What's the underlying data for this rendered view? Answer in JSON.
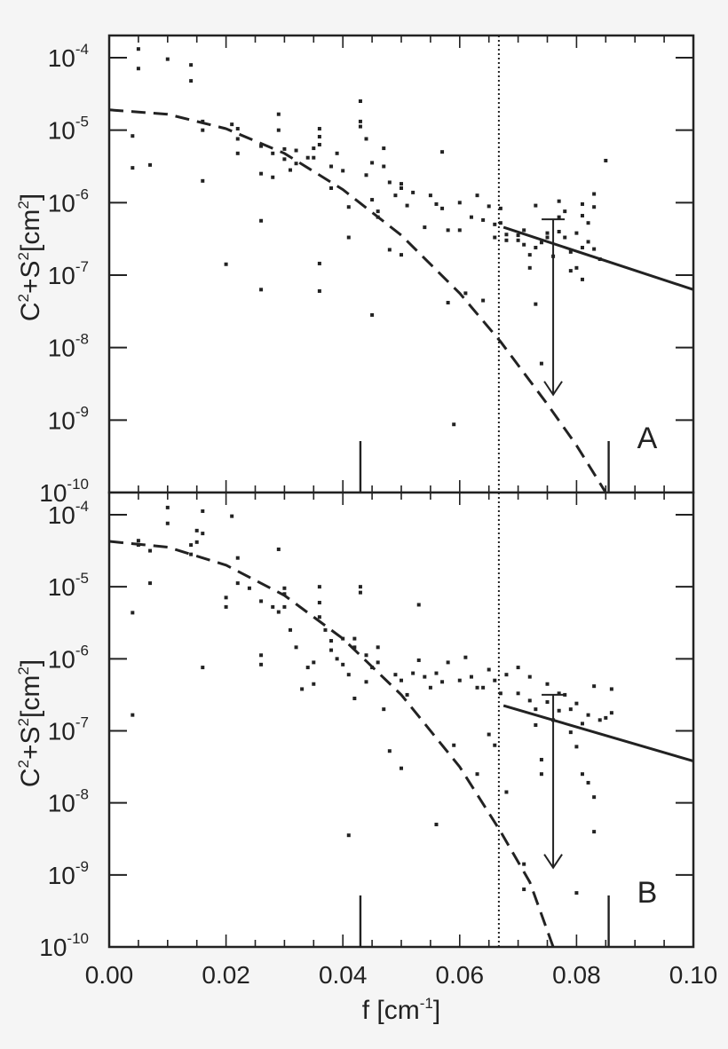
{
  "figure": {
    "background": "#f5f5f5",
    "plot_background": "#ffffff",
    "ink": "#222222"
  },
  "chart_data": [
    {
      "type": "scatter",
      "panel_label": "A",
      "title": "",
      "xlabel": "f [cm-1]",
      "ylabel": "C2+S2[cm2]",
      "xlim": [
        0.0,
        0.1
      ],
      "ylim_log10": [
        -10,
        -3.7
      ],
      "yscale": "log",
      "xticks": [
        "0.00",
        "0.02",
        "0.04",
        "0.06",
        "0.08",
        "0.10"
      ],
      "yticks": [
        {
          "exp": "-4"
        },
        {
          "exp": "-5"
        },
        {
          "exp": "-6"
        },
        {
          "exp": "-7"
        },
        {
          "exp": "-8"
        },
        {
          "exp": "-9"
        },
        {
          "exp": "-10"
        }
      ],
      "grid": false,
      "vertical_marker_lines": [
        0.043,
        0.0855
      ],
      "cutoff_dotted_line_x": 0.0667,
      "dashed_curve": {
        "description": "Gaussian-like fit",
        "y0_log10": -4.72,
        "points": [
          [
            0.0,
            -4.72
          ],
          [
            0.01,
            -4.78
          ],
          [
            0.02,
            -4.98
          ],
          [
            0.03,
            -5.32
          ],
          [
            0.04,
            -5.82
          ],
          [
            0.05,
            -6.45
          ],
          [
            0.06,
            -7.25
          ],
          [
            0.067,
            -7.92
          ],
          [
            0.075,
            -8.78
          ],
          [
            0.08,
            -9.35
          ],
          [
            0.085,
            -10.0
          ]
        ]
      },
      "solid_fit_line": {
        "points": [
          [
            0.0675,
            -6.34
          ],
          [
            0.1,
            -7.2
          ]
        ]
      },
      "error_bar": {
        "x": 0.076,
        "y_center_log10": -6.62,
        "y_top_log10": -6.23,
        "y_bottom_log10": -8.65,
        "arrow_down": true
      },
      "points_log10": [
        [
          0.004,
          -5.08
        ],
        [
          0.004,
          -5.52
        ],
        [
          0.005,
          -3.88
        ],
        [
          0.005,
          -4.15
        ],
        [
          0.007,
          -5.48
        ],
        [
          0.01,
          -4.02
        ],
        [
          0.014,
          -4.1
        ],
        [
          0.014,
          -4.32
        ],
        [
          0.016,
          -4.88
        ],
        [
          0.016,
          -5.0
        ],
        [
          0.016,
          -5.7
        ],
        [
          0.02,
          -6.85
        ],
        [
          0.021,
          -4.92
        ],
        [
          0.022,
          -4.98
        ],
        [
          0.022,
          -5.12
        ],
        [
          0.022,
          -5.32
        ],
        [
          0.026,
          -5.22
        ],
        [
          0.026,
          -5.6
        ],
        [
          0.026,
          -6.25
        ],
        [
          0.026,
          -7.2
        ],
        [
          0.028,
          -5.32
        ],
        [
          0.028,
          -5.65
        ],
        [
          0.029,
          -4.78
        ],
        [
          0.029,
          -5.0
        ],
        [
          0.03,
          -5.26
        ],
        [
          0.03,
          -5.4
        ],
        [
          0.031,
          -5.55
        ],
        [
          0.032,
          -5.28
        ],
        [
          0.032,
          -5.46
        ],
        [
          0.034,
          -5.38
        ],
        [
          0.035,
          -5.25
        ],
        [
          0.035,
          -5.38
        ],
        [
          0.036,
          -4.98
        ],
        [
          0.036,
          -5.09
        ],
        [
          0.036,
          -5.2
        ],
        [
          0.036,
          -6.84
        ],
        [
          0.036,
          -7.22
        ],
        [
          0.038,
          -5.5
        ],
        [
          0.038,
          -5.8
        ],
        [
          0.039,
          -5.32
        ],
        [
          0.04,
          -5.56
        ],
        [
          0.041,
          -6.48
        ],
        [
          0.041,
          -6.06
        ],
        [
          0.043,
          -4.6
        ],
        [
          0.043,
          -4.88
        ],
        [
          0.043,
          -4.95
        ],
        [
          0.044,
          -5.12
        ],
        [
          0.044,
          -5.62
        ],
        [
          0.045,
          -5.45
        ],
        [
          0.045,
          -5.96
        ],
        [
          0.045,
          -7.55
        ],
        [
          0.046,
          -6.12
        ],
        [
          0.046,
          -6.2
        ],
        [
          0.047,
          -5.25
        ],
        [
          0.047,
          -5.5
        ],
        [
          0.048,
          -5.72
        ],
        [
          0.048,
          -6.65
        ],
        [
          0.049,
          -5.9
        ],
        [
          0.05,
          -5.74
        ],
        [
          0.05,
          -5.8
        ],
        [
          0.05,
          -6.72
        ],
        [
          0.051,
          -6.04
        ],
        [
          0.052,
          -5.86
        ],
        [
          0.054,
          -6.34
        ],
        [
          0.055,
          -5.9
        ],
        [
          0.056,
          -6.02
        ],
        [
          0.057,
          -5.3
        ],
        [
          0.057,
          -6.08
        ],
        [
          0.058,
          -6.38
        ],
        [
          0.058,
          -7.38
        ],
        [
          0.059,
          -9.06
        ],
        [
          0.06,
          -6.0
        ],
        [
          0.06,
          -6.38
        ],
        [
          0.061,
          -7.25
        ],
        [
          0.062,
          -6.2
        ],
        [
          0.063,
          -5.9
        ],
        [
          0.064,
          -6.24
        ],
        [
          0.064,
          -7.35
        ],
        [
          0.065,
          -6.05
        ],
        [
          0.066,
          -6.3
        ],
        [
          0.066,
          -6.48
        ],
        [
          0.067,
          -6.08
        ],
        [
          0.067,
          -6.28
        ],
        [
          0.068,
          -6.44
        ],
        [
          0.068,
          -6.52
        ],
        [
          0.07,
          -6.45
        ],
        [
          0.07,
          -6.52
        ],
        [
          0.071,
          -6.38
        ],
        [
          0.071,
          -6.58
        ],
        [
          0.072,
          -6.72
        ],
        [
          0.072,
          -6.9
        ],
        [
          0.073,
          -6.04
        ],
        [
          0.073,
          -6.62
        ],
        [
          0.073,
          -7.4
        ],
        [
          0.074,
          -8.22
        ],
        [
          0.074,
          -6.55
        ],
        [
          0.075,
          -6.42
        ],
        [
          0.075,
          -6.48
        ],
        [
          0.076,
          -6.74
        ],
        [
          0.077,
          -5.98
        ],
        [
          0.077,
          -6.2
        ],
        [
          0.077,
          -6.4
        ],
        [
          0.078,
          -6.12
        ],
        [
          0.078,
          -6.48
        ],
        [
          0.079,
          -6.68
        ],
        [
          0.079,
          -6.94
        ],
        [
          0.08,
          -6.42
        ],
        [
          0.08,
          -6.9
        ],
        [
          0.081,
          -6.02
        ],
        [
          0.081,
          -6.18
        ],
        [
          0.081,
          -6.62
        ],
        [
          0.081,
          -7.06
        ],
        [
          0.082,
          -6.28
        ],
        [
          0.082,
          -6.54
        ],
        [
          0.083,
          -5.88
        ],
        [
          0.083,
          -6.06
        ],
        [
          0.083,
          -6.64
        ],
        [
          0.084,
          -6.78
        ],
        [
          0.085,
          -5.42
        ]
      ]
    },
    {
      "type": "scatter",
      "panel_label": "B",
      "title": "",
      "xlabel": "f [cm-1]",
      "ylabel": "C2+S2[cm2]",
      "xlim": [
        0.0,
        0.1
      ],
      "ylim_log10": [
        -10,
        -3.7
      ],
      "yscale": "log",
      "xticks": [
        "0.00",
        "0.02",
        "0.04",
        "0.06",
        "0.08",
        "0.10"
      ],
      "yticks": [
        {
          "exp": "-4"
        },
        {
          "exp": "-5"
        },
        {
          "exp": "-6"
        },
        {
          "exp": "-7"
        },
        {
          "exp": "-8"
        },
        {
          "exp": "-9"
        },
        {
          "exp": "-10"
        }
      ],
      "grid": false,
      "vertical_marker_lines": [
        0.043,
        0.0855
      ],
      "cutoff_dotted_line_x": 0.0667,
      "dashed_curve": {
        "description": "Gaussian-like fit",
        "y0_log10": -4.37,
        "points": [
          [
            0.0,
            -4.37
          ],
          [
            0.01,
            -4.45
          ],
          [
            0.02,
            -4.7
          ],
          [
            0.03,
            -5.12
          ],
          [
            0.04,
            -5.72
          ],
          [
            0.05,
            -6.5
          ],
          [
            0.06,
            -7.5
          ],
          [
            0.067,
            -8.4
          ],
          [
            0.072,
            -9.1
          ],
          [
            0.076,
            -10.0
          ]
        ]
      },
      "solid_fit_line": {
        "points": [
          [
            0.0675,
            -6.65
          ],
          [
            0.1,
            -7.42
          ]
        ]
      },
      "error_bar": {
        "x": 0.076,
        "y_center_log10": -6.92,
        "y_top_log10": -6.5,
        "y_bottom_log10": -8.9,
        "arrow_down": true
      },
      "points_log10": [
        [
          0.004,
          -5.36
        ],
        [
          0.004,
          -6.78
        ],
        [
          0.005,
          -4.36
        ],
        [
          0.005,
          -4.42
        ],
        [
          0.007,
          -4.5
        ],
        [
          0.007,
          -4.95
        ],
        [
          0.01,
          -3.9
        ],
        [
          0.01,
          -4.12
        ],
        [
          0.014,
          -4.42
        ],
        [
          0.014,
          -4.55
        ],
        [
          0.015,
          -4.38
        ],
        [
          0.015,
          -4.22
        ],
        [
          0.016,
          -3.95
        ],
        [
          0.016,
          -4.26
        ],
        [
          0.016,
          -6.12
        ],
        [
          0.02,
          -5.28
        ],
        [
          0.02,
          -5.15
        ],
        [
          0.021,
          -4.02
        ],
        [
          0.022,
          -4.6
        ],
        [
          0.022,
          -4.95
        ],
        [
          0.024,
          -5.02
        ],
        [
          0.026,
          -5.2
        ],
        [
          0.026,
          -5.95
        ],
        [
          0.026,
          -6.08
        ],
        [
          0.028,
          -5.28
        ],
        [
          0.029,
          -4.48
        ],
        [
          0.029,
          -5.35
        ],
        [
          0.03,
          -5.02
        ],
        [
          0.03,
          -5.1
        ],
        [
          0.03,
          -5.28
        ],
        [
          0.031,
          -5.6
        ],
        [
          0.032,
          -5.84
        ],
        [
          0.033,
          -6.42
        ],
        [
          0.034,
          -6.12
        ],
        [
          0.035,
          -6.05
        ],
        [
          0.035,
          -6.35
        ],
        [
          0.036,
          -5.0
        ],
        [
          0.036,
          -5.22
        ],
        [
          0.036,
          -5.42
        ],
        [
          0.037,
          -5.6
        ],
        [
          0.038,
          -5.75
        ],
        [
          0.038,
          -5.88
        ],
        [
          0.039,
          -6.0
        ],
        [
          0.04,
          -5.72
        ],
        [
          0.04,
          -6.08
        ],
        [
          0.041,
          -8.45
        ],
        [
          0.041,
          -6.22
        ],
        [
          0.042,
          -5.72
        ],
        [
          0.042,
          -5.84
        ],
        [
          0.042,
          -6.55
        ],
        [
          0.043,
          -5.0
        ],
        [
          0.043,
          -5.08
        ],
        [
          0.044,
          -5.95
        ],
        [
          0.044,
          -6.32
        ],
        [
          0.045,
          -6.12
        ],
        [
          0.046,
          -5.84
        ],
        [
          0.046,
          -6.05
        ],
        [
          0.047,
          -6.7
        ],
        [
          0.048,
          -7.28
        ],
        [
          0.049,
          -6.22
        ],
        [
          0.05,
          -6.3
        ],
        [
          0.05,
          -7.52
        ],
        [
          0.051,
          -6.5
        ],
        [
          0.052,
          -6.2
        ],
        [
          0.053,
          -6.02
        ],
        [
          0.053,
          -5.25
        ],
        [
          0.054,
          -6.25
        ],
        [
          0.055,
          -6.4
        ],
        [
          0.056,
          -6.2
        ],
        [
          0.056,
          -8.3
        ],
        [
          0.057,
          -6.32
        ],
        [
          0.058,
          -6.05
        ],
        [
          0.059,
          -7.2
        ],
        [
          0.06,
          -6.3
        ],
        [
          0.061,
          -5.98
        ],
        [
          0.062,
          -6.25
        ],
        [
          0.063,
          -6.4
        ],
        [
          0.063,
          -7.6
        ],
        [
          0.064,
          -6.4
        ],
        [
          0.065,
          -6.15
        ],
        [
          0.065,
          -7.05
        ],
        [
          0.066,
          -6.3
        ],
        [
          0.066,
          -7.2
        ],
        [
          0.067,
          -6.48
        ],
        [
          0.068,
          -6.22
        ],
        [
          0.068,
          -7.85
        ],
        [
          0.07,
          -6.12
        ],
        [
          0.07,
          -6.48
        ],
        [
          0.071,
          -8.85
        ],
        [
          0.071,
          -9.2
        ],
        [
          0.072,
          -6.25
        ],
        [
          0.072,
          -6.58
        ],
        [
          0.073,
          -6.7
        ],
        [
          0.073,
          -6.92
        ],
        [
          0.074,
          -7.4
        ],
        [
          0.074,
          -7.6
        ],
        [
          0.075,
          -6.35
        ],
        [
          0.075,
          -6.6
        ],
        [
          0.076,
          -6.85
        ],
        [
          0.077,
          -6.48
        ],
        [
          0.077,
          -6.72
        ],
        [
          0.078,
          -6.5
        ],
        [
          0.079,
          -6.7
        ],
        [
          0.079,
          -7.02
        ],
        [
          0.08,
          -6.62
        ],
        [
          0.08,
          -7.22
        ],
        [
          0.08,
          -9.25
        ],
        [
          0.081,
          -6.9
        ],
        [
          0.081,
          -7.6
        ],
        [
          0.082,
          -6.78
        ],
        [
          0.082,
          -7.72
        ],
        [
          0.083,
          -6.38
        ],
        [
          0.083,
          -7.92
        ],
        [
          0.083,
          -8.4
        ],
        [
          0.084,
          -6.85
        ],
        [
          0.085,
          -6.82
        ],
        [
          0.086,
          -6.75
        ],
        [
          0.086,
          -6.42
        ]
      ]
    }
  ],
  "axes": {
    "x_label_main": "f [cm",
    "x_label_sup": "-1",
    "x_label_close": "]",
    "y_label_c": "C",
    "y_label_c_sup": "2",
    "y_label_plus": "+S",
    "y_label_s_sup": "2",
    "y_label_unit": "[cm",
    "y_label_unit_sup": "2",
    "y_label_close": "]",
    "tick_base": "10"
  }
}
